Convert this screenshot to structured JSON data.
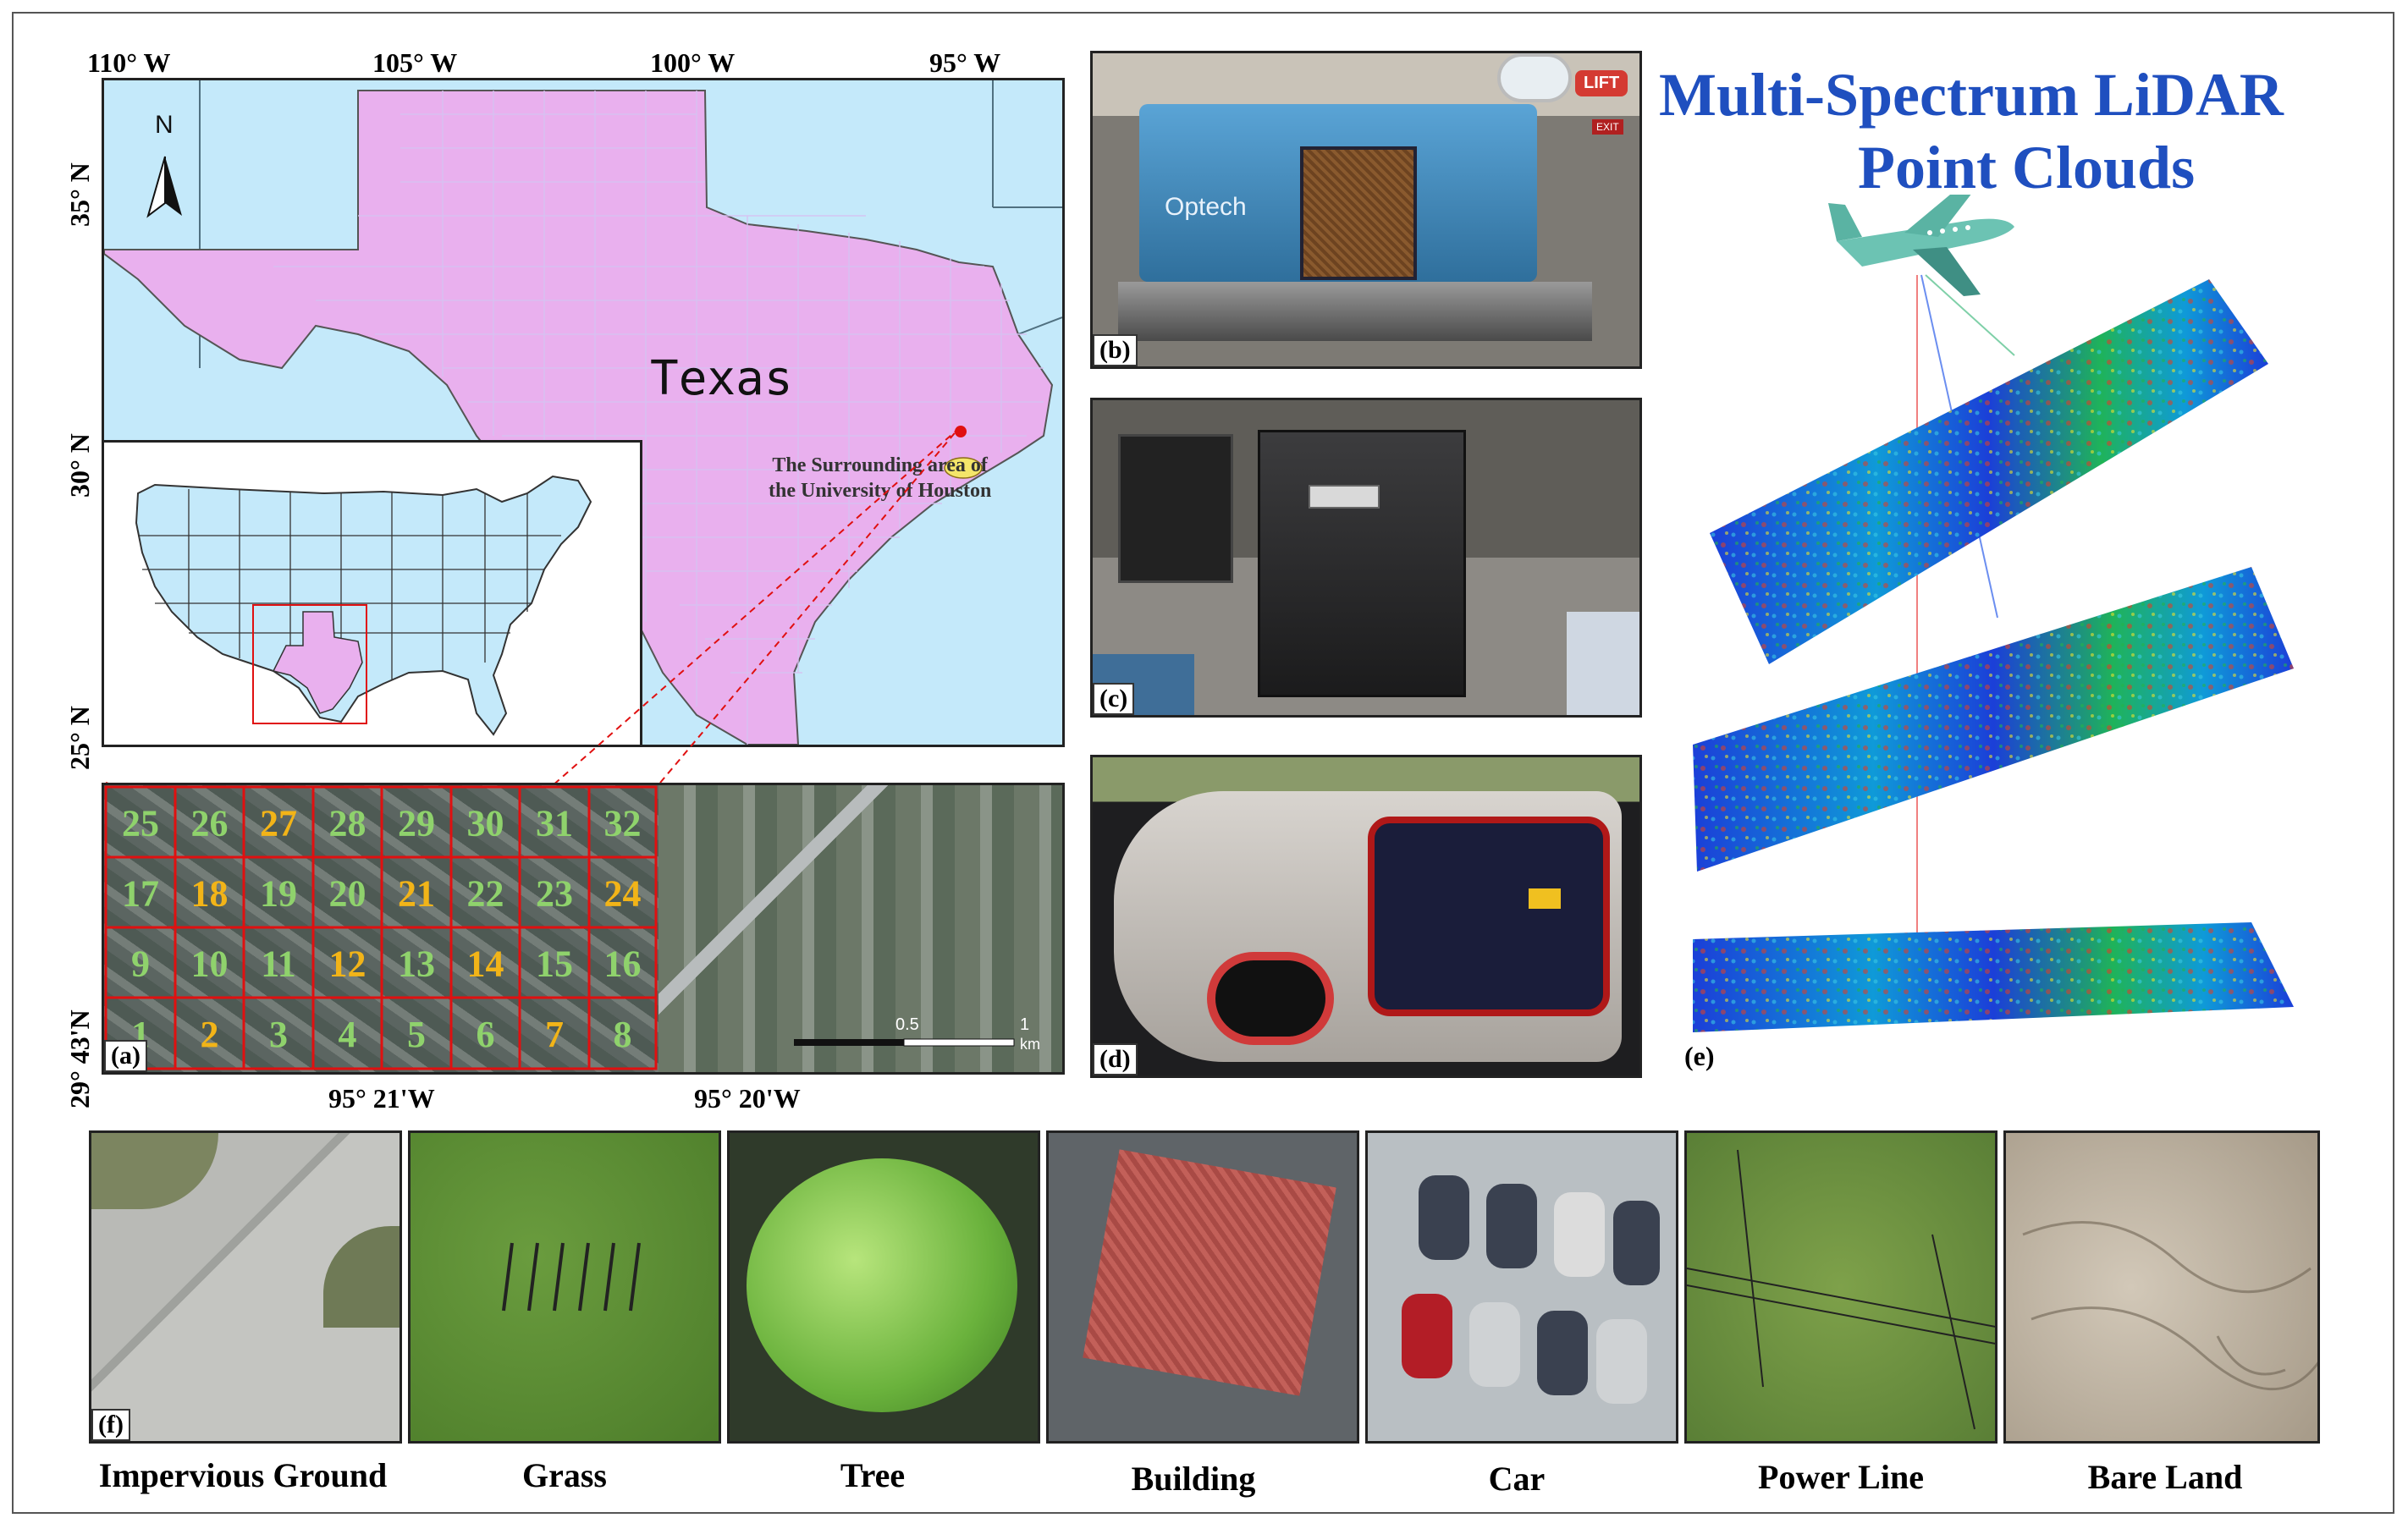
{
  "map": {
    "lon_labels": [
      "110° W",
      "105° W",
      "100° W",
      "95° W"
    ],
    "lat_labels": [
      "35° N",
      "30° N",
      "25° N"
    ],
    "north_label": "N",
    "state_label": "Texas",
    "study_area_label_line1": "The Surrounding area of",
    "study_area_label_line2": "the University of Houston"
  },
  "aerial": {
    "label": "(a)",
    "lat_label": "29° 43'N",
    "lon_label_1": "95° 21'W",
    "lon_label_2": "95° 20'W",
    "scale_mid": "0.5",
    "scale_end": "1",
    "scale_unit": "km",
    "grid_rows": [
      [
        "25",
        "26",
        "27",
        "28",
        "29",
        "30",
        "31",
        "32"
      ],
      [
        "17",
        "18",
        "19",
        "20",
        "21",
        "22",
        "23",
        "24"
      ],
      [
        "9",
        "10",
        "11",
        "12",
        "13",
        "14",
        "15",
        "16"
      ],
      [
        "1",
        "2",
        "3",
        "4",
        "5",
        "6",
        "7",
        "8"
      ]
    ],
    "highlighted_tiles": [
      "27",
      "18",
      "21",
      "24",
      "12",
      "14",
      "2",
      "7"
    ],
    "colors": {
      "highlight": "#f2b418",
      "normal": "#8fd26c",
      "grid": "#e01010"
    }
  },
  "photos": {
    "b_label": "(b)",
    "c_label": "(c)",
    "d_label": "(d)",
    "sensor_brand": "Optech",
    "lift_sign": "LIFT",
    "exit_sign": "EXIT"
  },
  "lidar": {
    "title_line1": "Multi-Spectrum LiDAR",
    "title_line2": "Point Clouds",
    "label": "(e)"
  },
  "classes": {
    "label": "(f)",
    "items": [
      "Impervious Ground",
      "Grass",
      "Tree",
      "Building",
      "Car",
      "Power Line",
      "Bare Land"
    ]
  }
}
